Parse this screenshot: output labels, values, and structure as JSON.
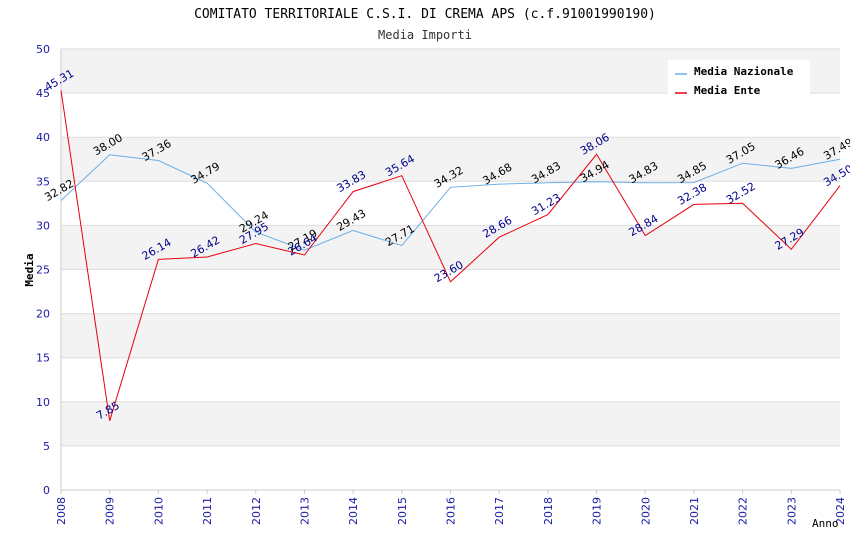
{
  "chart_data": {
    "type": "line",
    "title": "COMITATO TERRITORIALE C.S.I. DI CREMA APS (c.f.91001990190)",
    "subtitle": "Media Importi",
    "xlabel": "Anno",
    "ylabel": "Media",
    "ylim": [
      0,
      50
    ],
    "yticks": [
      0,
      5,
      10,
      15,
      20,
      25,
      30,
      35,
      40,
      45,
      50
    ],
    "categories": [
      "2008",
      "2009",
      "2010",
      "2011",
      "2012",
      "2013",
      "2014",
      "2015",
      "2016",
      "2017",
      "2018",
      "2019",
      "2020",
      "2021",
      "2022",
      "2023",
      "2024"
    ],
    "legend_position": "top-right",
    "series": [
      {
        "name": "Media Nazionale",
        "color": "#6aaee8",
        "label_color": "#000000",
        "values": [
          32.82,
          38.0,
          37.36,
          34.79,
          29.24,
          27.19,
          29.43,
          27.71,
          34.32,
          34.68,
          34.83,
          34.94,
          34.83,
          34.85,
          37.05,
          36.46,
          37.49
        ],
        "labels": [
          "32.82",
          "38.00",
          "37.36",
          "34.79",
          "29.24",
          "27.19",
          "29.43",
          "27.71",
          "34.32",
          "34.68",
          "34.83",
          "34.94",
          "34.83",
          "34.85",
          "37.05",
          "36.46",
          "37.49"
        ]
      },
      {
        "name": "Media Ente",
        "color": "#e8000b",
        "label_color": "#00008b",
        "values": [
          45.31,
          7.85,
          26.14,
          26.42,
          27.95,
          26.64,
          33.83,
          35.64,
          23.6,
          28.66,
          31.23,
          38.06,
          28.84,
          32.38,
          32.52,
          27.29,
          34.5
        ],
        "labels": [
          "45.31",
          "7.85",
          "26.14",
          "26.42",
          "27.95",
          "26.64",
          "33.83",
          "35.64",
          "23.60",
          "28.66",
          "31.23",
          "38.06",
          "28.84",
          "32.38",
          "32.52",
          "27.29",
          "34.50"
        ]
      }
    ],
    "grid": true
  }
}
